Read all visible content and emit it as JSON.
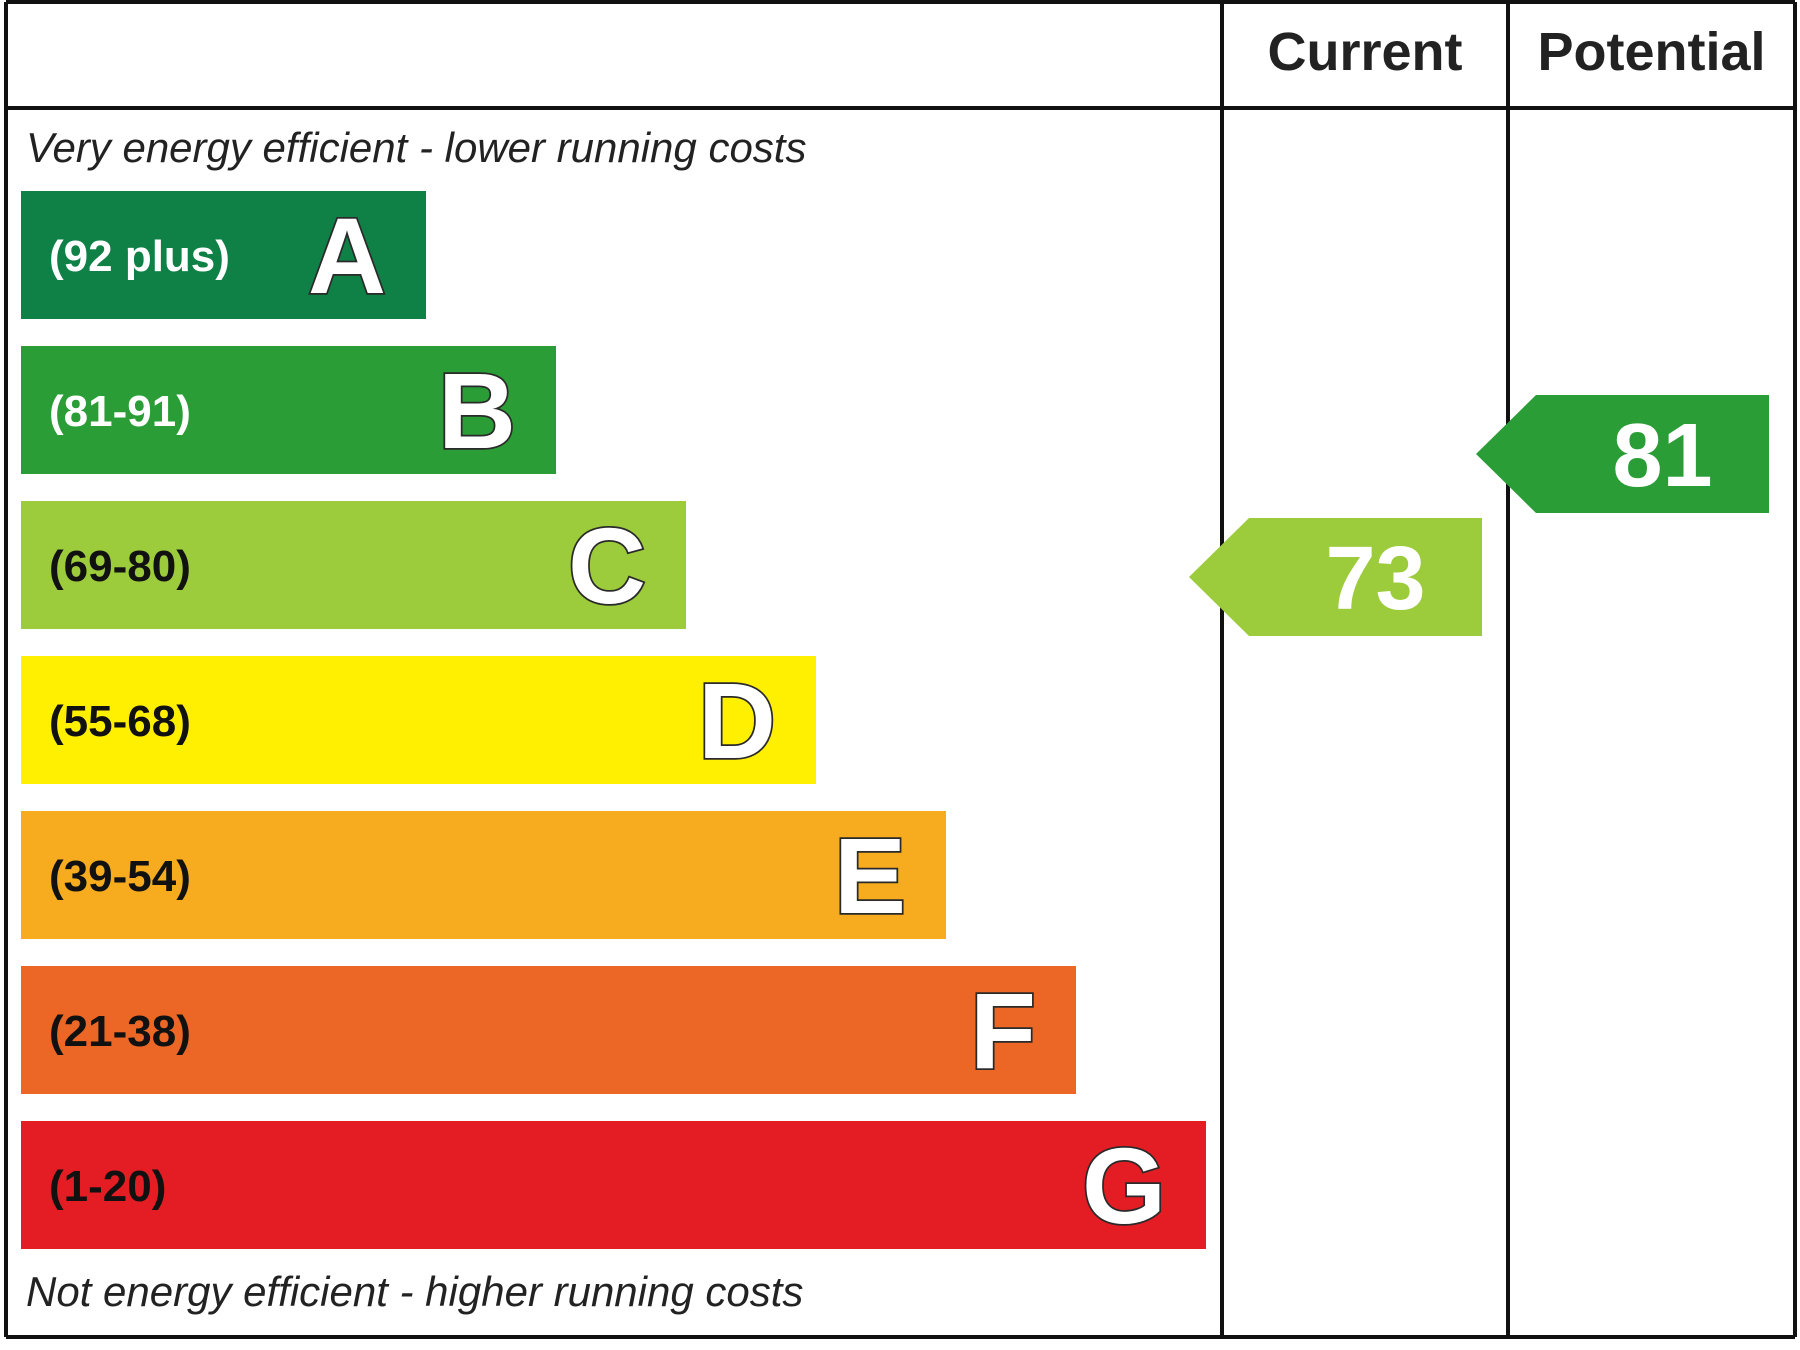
{
  "chart_data": {
    "type": "bar",
    "title": "",
    "columns": {
      "current": "Current",
      "potential": "Potential"
    },
    "top_note": "Very energy efficient - lower running costs",
    "bottom_note": "Not energy efficient - higher running costs",
    "bands": [
      {
        "letter": "A",
        "range": "(92 plus)",
        "min": 92,
        "max": 100,
        "color": "#0f8146",
        "range_text_color": "#ffffff"
      },
      {
        "letter": "B",
        "range": "(81-91)",
        "min": 81,
        "max": 91,
        "color": "#2a9d36",
        "range_text_color": "#ffffff"
      },
      {
        "letter": "C",
        "range": "(69-80)",
        "min": 69,
        "max": 80,
        "color": "#9ccb3b",
        "range_text_color": "#111111"
      },
      {
        "letter": "D",
        "range": "(55-68)",
        "min": 55,
        "max": 68,
        "color": "#ffef00",
        "range_text_color": "#111111"
      },
      {
        "letter": "E",
        "range": "(39-54)",
        "min": 39,
        "max": 54,
        "color": "#f6ac1e",
        "range_text_color": "#111111"
      },
      {
        "letter": "F",
        "range": "(21-38)",
        "min": 21,
        "max": 38,
        "color": "#ec6725",
        "range_text_color": "#111111"
      },
      {
        "letter": "G",
        "range": "(1-20)",
        "min": 1,
        "max": 20,
        "color": "#e31d23",
        "range_text_color": "#111111"
      }
    ],
    "ratings": [
      {
        "column": "current",
        "value": 73,
        "band": "C"
      },
      {
        "column": "potential",
        "value": 81,
        "band": "B"
      }
    ]
  }
}
